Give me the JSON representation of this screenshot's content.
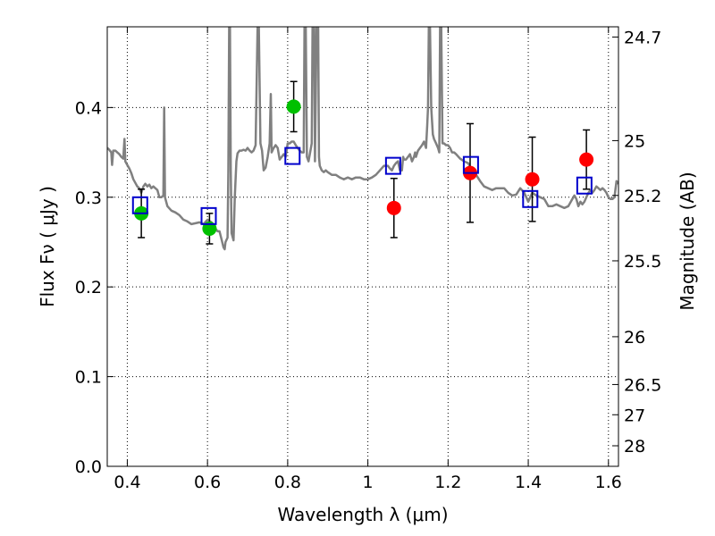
{
  "chart_data": {
    "type": "scatter",
    "xlabel": "Wavelength  λ (μm)",
    "ylabel": "Flux  Fν  ( μJy )",
    "y2label": "Magnitude (AB)",
    "xlim": [
      0.35,
      1.625
    ],
    "ylim": [
      0.0,
      0.49
    ],
    "grid": true,
    "x_ticks": [
      "0.4",
      "0.6",
      "0.8",
      "1",
      "1.2",
      "1.4",
      "1.6"
    ],
    "y_ticks": [
      "0.0",
      "0.1",
      "0.2",
      "0.3",
      "0.4"
    ],
    "right_ticks": [
      {
        "label": "24.7",
        "flux": 0.4786
      },
      {
        "label": "25",
        "flux": 0.3631
      },
      {
        "label": "25.2",
        "flux": 0.302
      },
      {
        "label": "25.5",
        "flux": 0.2291
      },
      {
        "label": "26",
        "flux": 0.1445
      },
      {
        "label": "26.5",
        "flux": 0.0912
      },
      {
        "label": "27",
        "flux": 0.0575
      },
      {
        "label": "28",
        "flux": 0.0229
      }
    ],
    "spectrum": {
      "color": "#808080",
      "points": [
        [
          0.35,
          0.355
        ],
        [
          0.355,
          0.353
        ],
        [
          0.36,
          0.35
        ],
        [
          0.362,
          0.336
        ],
        [
          0.365,
          0.352
        ],
        [
          0.37,
          0.352
        ],
        [
          0.375,
          0.35
        ],
        [
          0.38,
          0.348
        ],
        [
          0.385,
          0.345
        ],
        [
          0.39,
          0.343
        ],
        [
          0.393,
          0.365
        ],
        [
          0.395,
          0.34
        ],
        [
          0.4,
          0.336
        ],
        [
          0.405,
          0.332
        ],
        [
          0.41,
          0.327
        ],
        [
          0.415,
          0.32
        ],
        [
          0.42,
          0.316
        ],
        [
          0.425,
          0.312
        ],
        [
          0.43,
          0.31
        ],
        [
          0.435,
          0.305
        ],
        [
          0.44,
          0.312
        ],
        [
          0.445,
          0.315
        ],
        [
          0.45,
          0.312
        ],
        [
          0.455,
          0.314
        ],
        [
          0.46,
          0.31
        ],
        [
          0.465,
          0.312
        ],
        [
          0.47,
          0.31
        ],
        [
          0.475,
          0.308
        ],
        [
          0.48,
          0.3
        ],
        [
          0.485,
          0.3
        ],
        [
          0.49,
          0.302
        ],
        [
          0.492,
          0.4
        ],
        [
          0.494,
          0.3
        ],
        [
          0.5,
          0.29
        ],
        [
          0.51,
          0.285
        ],
        [
          0.52,
          0.283
        ],
        [
          0.53,
          0.28
        ],
        [
          0.54,
          0.275
        ],
        [
          0.55,
          0.273
        ],
        [
          0.56,
          0.27
        ],
        [
          0.57,
          0.271
        ],
        [
          0.58,
          0.272
        ],
        [
          0.59,
          0.27
        ],
        [
          0.6,
          0.275
        ],
        [
          0.61,
          0.272
        ],
        [
          0.615,
          0.268
        ],
        [
          0.62,
          0.265
        ],
        [
          0.625,
          0.262
        ],
        [
          0.63,
          0.262
        ],
        [
          0.635,
          0.253
        ],
        [
          0.64,
          0.244
        ],
        [
          0.643,
          0.242
        ],
        [
          0.645,
          0.25
        ],
        [
          0.65,
          0.255
        ],
        [
          0.652,
          0.33
        ],
        [
          0.654,
          0.49
        ],
        [
          0.656,
          0.49
        ],
        [
          0.658,
          0.33
        ],
        [
          0.66,
          0.26
        ],
        [
          0.665,
          0.252
        ],
        [
          0.668,
          0.3
        ],
        [
          0.672,
          0.34
        ],
        [
          0.675,
          0.349
        ],
        [
          0.68,
          0.352
        ],
        [
          0.685,
          0.352
        ],
        [
          0.69,
          0.353
        ],
        [
          0.695,
          0.352
        ],
        [
          0.7,
          0.355
        ],
        [
          0.705,
          0.352
        ],
        [
          0.71,
          0.35
        ],
        [
          0.715,
          0.352
        ],
        [
          0.72,
          0.358
        ],
        [
          0.725,
          0.49
        ],
        [
          0.728,
          0.49
        ],
        [
          0.732,
          0.36
        ],
        [
          0.736,
          0.352
        ],
        [
          0.74,
          0.33
        ],
        [
          0.745,
          0.333
        ],
        [
          0.75,
          0.345
        ],
        [
          0.755,
          0.36
        ],
        [
          0.758,
          0.415
        ],
        [
          0.76,
          0.35
        ],
        [
          0.765,
          0.355
        ],
        [
          0.77,
          0.358
        ],
        [
          0.775,
          0.355
        ],
        [
          0.78,
          0.342
        ],
        [
          0.785,
          0.345
        ],
        [
          0.79,
          0.348
        ],
        [
          0.795,
          0.345
        ],
        [
          0.8,
          0.36
        ],
        [
          0.805,
          0.36
        ],
        [
          0.81,
          0.362
        ],
        [
          0.815,
          0.362
        ],
        [
          0.82,
          0.358
        ],
        [
          0.825,
          0.355
        ],
        [
          0.83,
          0.352
        ],
        [
          0.835,
          0.35
        ],
        [
          0.84,
          0.35
        ],
        [
          0.842,
          0.49
        ],
        [
          0.845,
          0.49
        ],
        [
          0.848,
          0.345
        ],
        [
          0.852,
          0.34
        ],
        [
          0.856,
          0.35
        ],
        [
          0.86,
          0.36
        ],
        [
          0.862,
          0.49
        ],
        [
          0.866,
          0.49
        ],
        [
          0.868,
          0.34
        ],
        [
          0.872,
          0.49
        ],
        [
          0.876,
          0.49
        ],
        [
          0.878,
          0.345
        ],
        [
          0.88,
          0.335
        ],
        [
          0.885,
          0.33
        ],
        [
          0.89,
          0.328
        ],
        [
          0.895,
          0.33
        ],
        [
          0.9,
          0.328
        ],
        [
          0.91,
          0.325
        ],
        [
          0.92,
          0.325
        ],
        [
          0.93,
          0.322
        ],
        [
          0.94,
          0.32
        ],
        [
          0.95,
          0.322
        ],
        [
          0.96,
          0.32
        ],
        [
          0.97,
          0.322
        ],
        [
          0.98,
          0.322
        ],
        [
          0.99,
          0.32
        ],
        [
          1.0,
          0.32
        ],
        [
          1.01,
          0.322
        ],
        [
          1.02,
          0.325
        ],
        [
          1.03,
          0.33
        ],
        [
          1.04,
          0.335
        ],
        [
          1.05,
          0.335
        ],
        [
          1.055,
          0.332
        ],
        [
          1.06,
          0.33
        ],
        [
          1.065,
          0.335
        ],
        [
          1.07,
          0.338
        ],
        [
          1.075,
          0.34
        ],
        [
          1.08,
          0.33
        ],
        [
          1.085,
          0.33
        ],
        [
          1.088,
          0.345
        ],
        [
          1.09,
          0.342
        ],
        [
          1.095,
          0.342
        ],
        [
          1.1,
          0.345
        ],
        [
          1.105,
          0.348
        ],
        [
          1.11,
          0.34
        ],
        [
          1.115,
          0.345
        ],
        [
          1.118,
          0.35
        ],
        [
          1.12,
          0.345
        ],
        [
          1.125,
          0.352
        ],
        [
          1.13,
          0.355
        ],
        [
          1.135,
          0.358
        ],
        [
          1.14,
          0.362
        ],
        [
          1.145,
          0.355
        ],
        [
          1.148,
          0.38
        ],
        [
          1.15,
          0.4
        ],
        [
          1.152,
          0.49
        ],
        [
          1.155,
          0.49
        ],
        [
          1.158,
          0.4
        ],
        [
          1.162,
          0.37
        ],
        [
          1.165,
          0.365
        ],
        [
          1.17,
          0.36
        ],
        [
          1.175,
          0.355
        ],
        [
          1.178,
          0.35
        ],
        [
          1.18,
          0.49
        ],
        [
          1.183,
          0.49
        ],
        [
          1.186,
          0.36
        ],
        [
          1.19,
          0.36
        ],
        [
          1.195,
          0.358
        ],
        [
          1.2,
          0.358
        ],
        [
          1.205,
          0.355
        ],
        [
          1.21,
          0.35
        ],
        [
          1.215,
          0.35
        ],
        [
          1.22,
          0.348
        ],
        [
          1.23,
          0.343
        ],
        [
          1.24,
          0.34
        ],
        [
          1.25,
          0.338
        ],
        [
          1.26,
          0.33
        ],
        [
          1.27,
          0.325
        ],
        [
          1.28,
          0.318
        ],
        [
          1.29,
          0.312
        ],
        [
          1.3,
          0.31
        ],
        [
          1.31,
          0.308
        ],
        [
          1.32,
          0.31
        ],
        [
          1.33,
          0.31
        ],
        [
          1.34,
          0.31
        ],
        [
          1.35,
          0.305
        ],
        [
          1.36,
          0.302
        ],
        [
          1.37,
          0.303
        ],
        [
          1.38,
          0.31
        ],
        [
          1.39,
          0.305
        ],
        [
          1.4,
          0.295
        ],
        [
          1.41,
          0.305
        ],
        [
          1.42,
          0.302
        ],
        [
          1.43,
          0.3
        ],
        [
          1.44,
          0.298
        ],
        [
          1.45,
          0.29
        ],
        [
          1.46,
          0.29
        ],
        [
          1.47,
          0.292
        ],
        [
          1.48,
          0.29
        ],
        [
          1.49,
          0.288
        ],
        [
          1.5,
          0.29
        ],
        [
          1.51,
          0.298
        ],
        [
          1.515,
          0.302
        ],
        [
          1.52,
          0.298
        ],
        [
          1.525,
          0.29
        ],
        [
          1.53,
          0.295
        ],
        [
          1.535,
          0.292
        ],
        [
          1.54,
          0.295
        ],
        [
          1.545,
          0.3
        ],
        [
          1.55,
          0.305
        ],
        [
          1.555,
          0.308
        ],
        [
          1.56,
          0.305
        ],
        [
          1.565,
          0.308
        ],
        [
          1.57,
          0.312
        ],
        [
          1.575,
          0.31
        ],
        [
          1.58,
          0.308
        ],
        [
          1.585,
          0.31
        ],
        [
          1.59,
          0.308
        ],
        [
          1.595,
          0.305
        ],
        [
          1.6,
          0.3
        ],
        [
          1.605,
          0.298
        ],
        [
          1.61,
          0.298
        ],
        [
          1.615,
          0.3
        ],
        [
          1.62,
          0.318
        ],
        [
          1.625,
          0.315
        ]
      ]
    },
    "series": [
      {
        "marker": "circle",
        "color": "#00c000",
        "x": [
          0.435,
          0.605,
          0.815
        ],
        "y": [
          0.282,
          0.265,
          0.401
        ],
        "err": [
          0.027,
          0.017,
          0.028
        ]
      },
      {
        "marker": "circle",
        "color": "#ff0000",
        "x": [
          1.065,
          1.255,
          1.41,
          1.545
        ],
        "y": [
          0.288,
          0.327,
          0.32,
          0.342
        ],
        "err": [
          0.033,
          0.055,
          0.047,
          0.033
        ]
      },
      {
        "marker": "square",
        "color": "#0000cc",
        "x": [
          0.432,
          0.603,
          0.812,
          1.063,
          1.257,
          1.405,
          1.54
        ],
        "y": [
          0.291,
          0.279,
          0.346,
          0.335,
          0.336,
          0.298,
          0.313
        ]
      }
    ]
  }
}
